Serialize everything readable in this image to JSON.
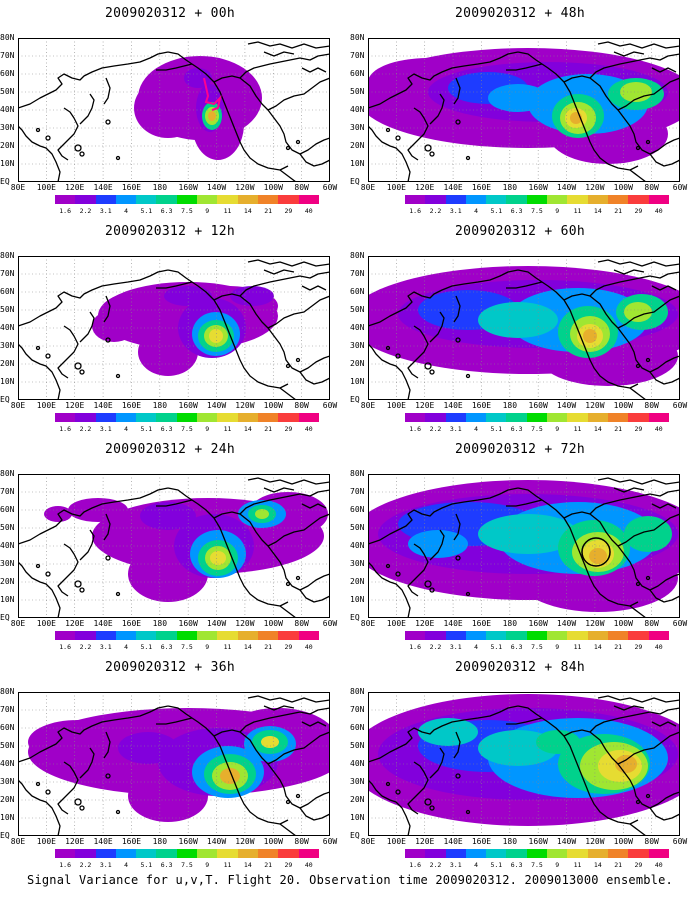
{
  "panels": [
    {
      "title": "2009020312 + 00h",
      "lead": 0
    },
    {
      "title": "2009020312 + 48h",
      "lead": 48
    },
    {
      "title": "2009020312 + 12h",
      "lead": 12
    },
    {
      "title": "2009020312 + 60h",
      "lead": 60
    },
    {
      "title": "2009020312 + 24h",
      "lead": 24
    },
    {
      "title": "2009020312 + 72h",
      "lead": 72
    },
    {
      "title": "2009020312 + 36h",
      "lead": 36
    },
    {
      "title": "2009020312 + 84h",
      "lead": 84
    }
  ],
  "lon_ticks": [
    "80E",
    "100E",
    "120E",
    "140E",
    "160E",
    "180",
    "160W",
    "140W",
    "120W",
    "100W",
    "80W",
    "60W"
  ],
  "lat_ticks": [
    "80N",
    "70N",
    "60N",
    "50N",
    "40N",
    "30N",
    "20N",
    "10N",
    "EQ"
  ],
  "colorbar": {
    "labels": [
      "1.6",
      "2.2",
      "3.1",
      "4",
      "5.1",
      "6.3",
      "7.5",
      "9",
      "11",
      "14",
      "21",
      "29",
      "40"
    ],
    "colors": [
      "#a000c8",
      "#8200dc",
      "#1e3cff",
      "#0096ff",
      "#00c8c8",
      "#00d28c",
      "#00dc00",
      "#a0e632",
      "#e6dc32",
      "#e6af2d",
      "#f08228",
      "#fa3c3c",
      "#f00082"
    ]
  },
  "caption": "Signal Variance for u,v,T. Flight 20. Observation time 2009020312. 2009013000 ensemble."
}
